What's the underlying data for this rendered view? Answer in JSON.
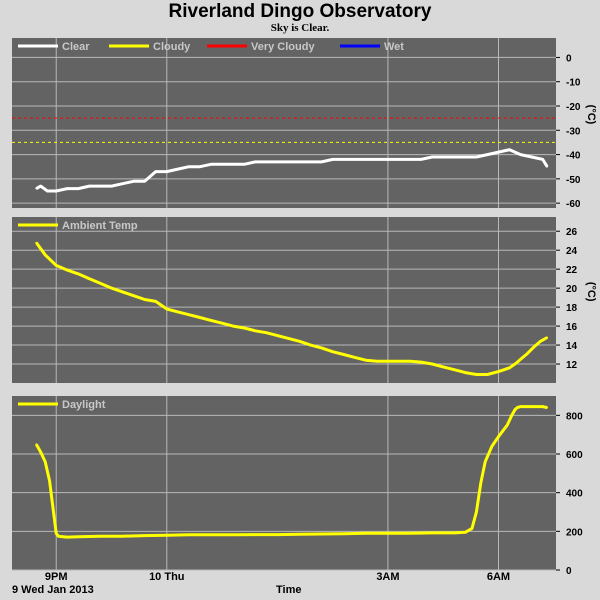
{
  "page": {
    "title": "Riverland Dingo Observatory",
    "subtitle": "Sky is Clear.",
    "date_label": "9 Wed Jan 2013",
    "time_label": "Time"
  },
  "colors": {
    "panel_bg": "#636363",
    "grid": "#b8b8b8",
    "frame_bg": "#d9d9d9",
    "clear": "#ffffff",
    "cloudy": "#ffff00",
    "very_cloudy": "#ff0000",
    "wet": "#0000ff",
    "ambient": "#ffff00",
    "daylight": "#ffff00"
  },
  "x_ticks": [
    "9PM",
    "10 Thu",
    "3AM",
    "6AM"
  ],
  "chart_data": [
    {
      "type": "line",
      "name": "cloud",
      "ylabel": "(°C)",
      "ylim": [
        -62,
        8
      ],
      "yticks": [
        0,
        -10,
        -20,
        -30,
        -40,
        -50,
        -60
      ],
      "grid": true,
      "legend": [
        "Clear",
        "Cloudy",
        "Very Cloudy",
        "Wet"
      ],
      "legend_colors": [
        "#ffffff",
        "#ffff00",
        "#ff0000",
        "#0000ff"
      ],
      "thresholds": [
        {
          "name": "Very Cloudy",
          "value": -25,
          "color": "#ff0000"
        },
        {
          "name": "Cloudy",
          "value": -35,
          "color": "#ffff00"
        }
      ],
      "series": [
        {
          "name": "Clear",
          "color": "#ffffff",
          "x": [
            8.1,
            8.3,
            8.6,
            9.0,
            9.5,
            10.0,
            10.5,
            11.0,
            11.5,
            12.0,
            12.5,
            13.0,
            13.5,
            14.0,
            14.5,
            15.0,
            15.5,
            16.0,
            16.5,
            17.0,
            17.5,
            18.0,
            18.5,
            19.0,
            19.5,
            20.0,
            20.5,
            21.0,
            21.5,
            22.0,
            22.5,
            23.0,
            23.5,
            24.0,
            24.5,
            25.0,
            25.5,
            26.0,
            26.5,
            27.0,
            27.5,
            28.0,
            28.5,
            29.0,
            29.5,
            30.0,
            30.5,
            31.0,
            31.2
          ],
          "y": [
            -54,
            -53,
            -55,
            -55,
            -54,
            -54,
            -53,
            -53,
            -53,
            -52,
            -51,
            -51,
            -47,
            -47,
            -46,
            -45,
            -45,
            -44,
            -44,
            -44,
            -44,
            -43,
            -43,
            -43,
            -43,
            -43,
            -43,
            -43,
            -42,
            -42,
            -42,
            -42,
            -42,
            -42,
            -42,
            -42,
            -42,
            -41,
            -41,
            -41,
            -41,
            -41,
            -40,
            -39,
            -38,
            -40,
            -41,
            -42,
            -45
          ]
        }
      ]
    },
    {
      "type": "line",
      "name": "ambient",
      "ylabel": "(°C)",
      "ylim": [
        10,
        27.5
      ],
      "yticks": [
        26,
        24,
        22,
        20,
        18,
        16,
        14,
        12
      ],
      "grid": true,
      "legend": [
        "Ambient Temp"
      ],
      "series": [
        {
          "name": "Ambient Temp",
          "color": "#ffff00",
          "x": [
            8.1,
            8.5,
            9.0,
            9.5,
            10.0,
            10.5,
            11.0,
            11.5,
            12.0,
            12.5,
            13.0,
            13.5,
            14.0,
            14.5,
            15.0,
            15.5,
            16.0,
            16.5,
            17.0,
            17.5,
            18.0,
            18.5,
            19.0,
            19.5,
            20.0,
            20.5,
            21.0,
            21.5,
            22.0,
            22.5,
            23.0,
            23.5,
            24.0,
            24.5,
            25.0,
            25.5,
            26.0,
            26.5,
            27.0,
            27.5,
            28.0,
            28.5,
            29.0,
            29.5,
            29.8,
            30.0,
            30.3,
            30.6,
            30.9,
            31.2
          ],
          "y": [
            24.8,
            23.5,
            22.4,
            21.9,
            21.5,
            21.0,
            20.5,
            20.0,
            19.6,
            19.2,
            18.8,
            18.6,
            17.8,
            17.5,
            17.2,
            16.9,
            16.6,
            16.3,
            16.0,
            15.8,
            15.5,
            15.3,
            15.0,
            14.7,
            14.4,
            14.0,
            13.7,
            13.3,
            13.0,
            12.7,
            12.4,
            12.3,
            12.3,
            12.3,
            12.3,
            12.2,
            12.0,
            11.7,
            11.4,
            11.1,
            10.9,
            10.9,
            11.2,
            11.6,
            12.1,
            12.5,
            13.1,
            13.8,
            14.4,
            14.8
          ]
        }
      ]
    },
    {
      "type": "line",
      "name": "daylight",
      "ylabel": "",
      "ylim": [
        0,
        900
      ],
      "yticks": [
        800,
        600,
        400,
        200,
        0
      ],
      "grid": true,
      "legend": [
        "Daylight"
      ],
      "series": [
        {
          "name": "Daylight",
          "color": "#ffff00",
          "x": [
            8.1,
            8.3,
            8.5,
            8.7,
            8.9,
            9.0,
            9.1,
            9.3,
            9.5,
            10.0,
            11.0,
            12.0,
            13.0,
            14.0,
            15.0,
            16.0,
            17.0,
            18.0,
            19.0,
            20.0,
            21.0,
            22.0,
            23.0,
            24.0,
            25.0,
            26.0,
            27.0,
            27.5,
            27.8,
            28.0,
            28.2,
            28.4,
            28.7,
            29.0,
            29.2,
            29.4,
            29.6,
            29.75,
            29.85,
            30.0,
            30.3,
            30.6,
            31.0,
            31.2
          ],
          "y": [
            650,
            610,
            560,
            460,
            280,
            190,
            175,
            172,
            170,
            172,
            175,
            175,
            178,
            180,
            182,
            182,
            182,
            183,
            183,
            185,
            186,
            188,
            190,
            190,
            190,
            192,
            192,
            195,
            215,
            300,
            450,
            560,
            640,
            690,
            720,
            750,
            800,
            830,
            840,
            845,
            845,
            845,
            845,
            840
          ]
        }
      ]
    }
  ]
}
